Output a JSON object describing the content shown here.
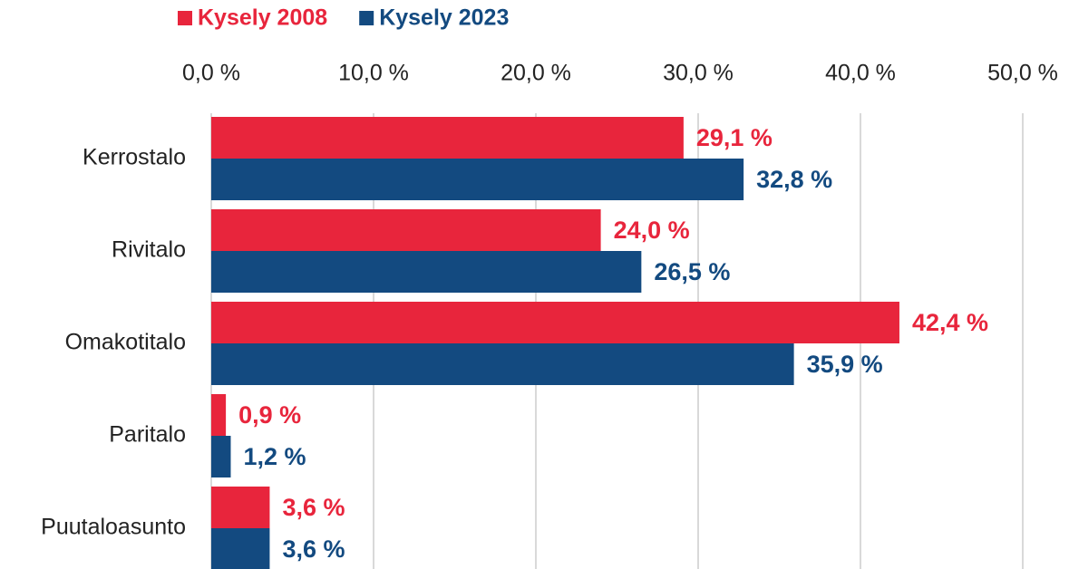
{
  "chart_data": {
    "type": "bar",
    "orientation": "horizontal",
    "categories": [
      "Kerrostalo",
      "Rivitalo",
      "Omakotitalo",
      "Paritalo",
      "Puutaloasunto"
    ],
    "series": [
      {
        "name": "Kysely 2008",
        "color": "#e8253c",
        "values": [
          29.1,
          24.0,
          42.4,
          0.9,
          3.6
        ],
        "value_labels": [
          "29,1 %",
          "24,0 %",
          "42,4 %",
          "0,9 %",
          "3,6 %"
        ]
      },
      {
        "name": "Kysely 2023",
        "color": "#134a80",
        "values": [
          32.8,
          26.5,
          35.9,
          1.2,
          3.6
        ],
        "value_labels": [
          "32,8 %",
          "26,5 %",
          "35,9 %",
          "1,2 %",
          "3,6 %"
        ]
      }
    ],
    "xlim": [
      0,
      50
    ],
    "xticks": [
      {
        "value": 0,
        "label": "0,0 %"
      },
      {
        "value": 10,
        "label": "10,0 %"
      },
      {
        "value": 20,
        "label": "20,0 %"
      },
      {
        "value": 30,
        "label": "30,0 %"
      },
      {
        "value": 40,
        "label": "40,0 %"
      },
      {
        "value": 50,
        "label": "50,0 %"
      }
    ],
    "grid": true,
    "legend": "top"
  }
}
